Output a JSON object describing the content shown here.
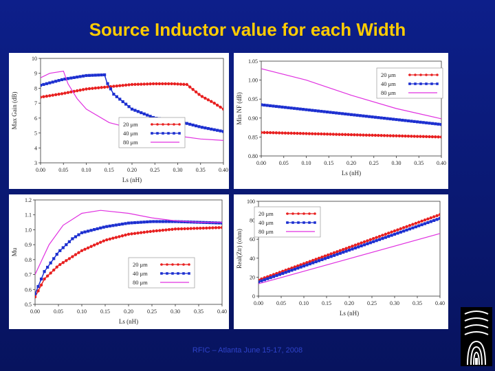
{
  "slide": {
    "title": "Source Inductor value for each Width",
    "footer": "RFIC – Atlanta June 15-17, 2008",
    "logo_icon": "university-seal-icon"
  },
  "colors": {
    "background": "#0b1a7a",
    "title": "#ffcc00",
    "footer": "#2f43c9",
    "w20": "#e82020",
    "w40": "#1c2fd0",
    "w80": "#e030e0"
  },
  "chart_data": [
    {
      "id": "gain",
      "type": "line",
      "title": "",
      "xlabel": "Ls (nH)",
      "ylabel": "Max Gain (dB)",
      "xlim": [
        0,
        0.4
      ],
      "ylim": [
        3,
        10
      ],
      "xticks": [
        "0.00",
        "0.05",
        "0.10",
        "0.15",
        "0.20",
        "0.25",
        "0.30",
        "0.35",
        "0.40"
      ],
      "yticks": [
        "3",
        "4",
        "5",
        "6",
        "7",
        "8",
        "9",
        "10"
      ],
      "legend": [
        {
          "label": "20 μm",
          "series": "w20"
        },
        {
          "label": "40 μm",
          "series": "w40"
        },
        {
          "label": "80 μm",
          "series": "w80"
        }
      ],
      "series": [
        {
          "name": "w20",
          "x": [
            0.0,
            0.05,
            0.1,
            0.15,
            0.2,
            0.25,
            0.29,
            0.32,
            0.35,
            0.38,
            0.4
          ],
          "y": [
            7.4,
            7.65,
            7.95,
            8.1,
            8.25,
            8.3,
            8.3,
            8.25,
            7.5,
            7.0,
            6.6
          ]
        },
        {
          "name": "w40",
          "x": [
            0.0,
            0.05,
            0.1,
            0.14,
            0.145,
            0.16,
            0.2,
            0.25,
            0.3,
            0.35,
            0.4
          ],
          "y": [
            8.2,
            8.6,
            8.85,
            8.9,
            8.4,
            7.6,
            6.6,
            6.0,
            5.8,
            5.4,
            5.1
          ]
        },
        {
          "name": "w80",
          "x": [
            0.0,
            0.02,
            0.05,
            0.06,
            0.08,
            0.1,
            0.15,
            0.2,
            0.25,
            0.3,
            0.35,
            0.4
          ],
          "y": [
            8.7,
            9.0,
            9.15,
            8.3,
            7.3,
            6.6,
            5.7,
            5.3,
            5.0,
            4.8,
            4.6,
            4.5
          ]
        }
      ]
    },
    {
      "id": "nf",
      "type": "line",
      "title": "",
      "xlabel": "Ls (nH)",
      "ylabel": "Min NF (dB)",
      "xlim": [
        0,
        0.4
      ],
      "ylim": [
        0.8,
        1.05
      ],
      "xticks": [
        "0.00",
        "0.05",
        "0.10",
        "0.15",
        "0.20",
        "0.25",
        "0.30",
        "0.35",
        "0.40"
      ],
      "yticks": [
        "0.80",
        "0.85",
        "0.90",
        "0.95",
        "1.00",
        "1.05"
      ],
      "legend": [
        {
          "label": "20 μm",
          "series": "w20"
        },
        {
          "label": "40 μm",
          "series": "w40"
        },
        {
          "label": "80 μm",
          "series": "w80"
        }
      ],
      "series": [
        {
          "name": "w20",
          "x": [
            0.0,
            0.4
          ],
          "y": [
            0.862,
            0.85
          ]
        },
        {
          "name": "w40",
          "x": [
            0.0,
            0.4
          ],
          "y": [
            0.935,
            0.883
          ]
        },
        {
          "name": "w80",
          "x": [
            0.0,
            0.1,
            0.2,
            0.3,
            0.4
          ],
          "y": [
            1.03,
            1.0,
            0.96,
            0.925,
            0.898
          ]
        }
      ]
    },
    {
      "id": "mu",
      "type": "line",
      "title": "",
      "xlabel": "Ls (nH)",
      "ylabel": "Mu",
      "xlim": [
        0,
        0.4
      ],
      "ylim": [
        0.5,
        1.2
      ],
      "xticks": [
        "0.00",
        "0.05",
        "0.10",
        "0.15",
        "0.20",
        "0.25",
        "0.30",
        "0.35",
        "0.40"
      ],
      "yticks": [
        "0.5",
        "0.6",
        "0.7",
        "0.8",
        "0.9",
        "1.0",
        "1.1",
        "1.2"
      ],
      "legend": [
        {
          "label": "20 μm",
          "series": "w20"
        },
        {
          "label": "40 μm",
          "series": "w40"
        },
        {
          "label": "80 μm",
          "series": "w80"
        }
      ],
      "series": [
        {
          "name": "w20",
          "x": [
            0.0,
            0.02,
            0.05,
            0.1,
            0.15,
            0.2,
            0.25,
            0.3,
            0.35,
            0.4
          ],
          "y": [
            0.55,
            0.67,
            0.76,
            0.86,
            0.93,
            0.97,
            0.99,
            1.005,
            1.01,
            1.015
          ]
        },
        {
          "name": "w40",
          "x": [
            0.0,
            0.02,
            0.05,
            0.08,
            0.1,
            0.15,
            0.2,
            0.25,
            0.3,
            0.35,
            0.4
          ],
          "y": [
            0.57,
            0.72,
            0.85,
            0.94,
            0.98,
            1.02,
            1.045,
            1.055,
            1.055,
            1.05,
            1.045
          ]
        },
        {
          "name": "w80",
          "x": [
            0.0,
            0.03,
            0.06,
            0.1,
            0.14,
            0.2,
            0.25,
            0.3,
            0.35,
            0.4
          ],
          "y": [
            0.7,
            0.9,
            1.03,
            1.11,
            1.13,
            1.11,
            1.08,
            1.06,
            1.05,
            1.05
          ]
        }
      ]
    },
    {
      "id": "real",
      "type": "line",
      "title": "",
      "xlabel": "Ls (nH)",
      "ylabel": "Real(Ztr) (ohm)",
      "xlim": [
        0,
        0.4
      ],
      "ylim": [
        0,
        100
      ],
      "xticks": [
        "0.00",
        "0.05",
        "0.10",
        "0.15",
        "0.20",
        "0.25",
        "0.30",
        "0.35",
        "0.40"
      ],
      "yticks": [
        "0",
        "20",
        "40",
        "60",
        "80",
        "100"
      ],
      "legend": [
        {
          "label": "20 μm",
          "series": "w20"
        },
        {
          "label": "40 μm",
          "series": "w40"
        },
        {
          "label": "80 μm",
          "series": "w80"
        }
      ],
      "series": [
        {
          "name": "w20",
          "x": [
            0.0,
            0.4
          ],
          "y": [
            17,
            86
          ]
        },
        {
          "name": "w40",
          "x": [
            0.0,
            0.4
          ],
          "y": [
            15,
            82
          ]
        },
        {
          "name": "w80",
          "x": [
            0.0,
            0.4
          ],
          "y": [
            13,
            66
          ]
        }
      ]
    }
  ]
}
